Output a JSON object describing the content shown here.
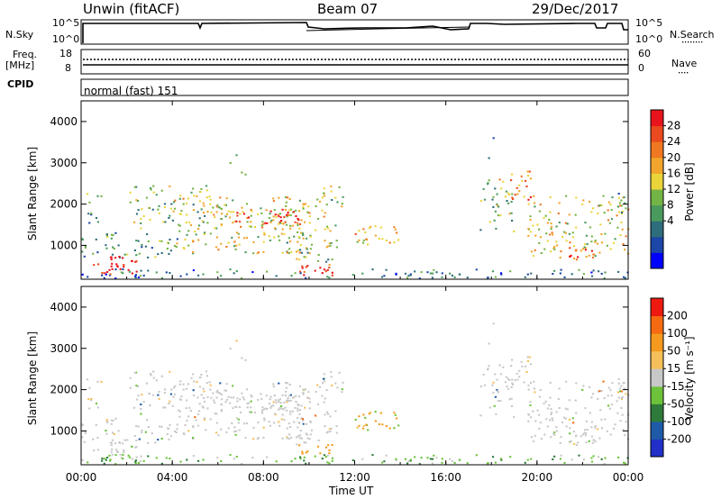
{
  "header": {
    "station": "Unwin (fitACF)",
    "beam": "Beam 07",
    "date": "29/Dec/2017"
  },
  "status_panels": {
    "nsky_label": "N.Sky",
    "nsky_ticks": [
      "10^5",
      "10^0"
    ],
    "nsearch_label": "N.Search",
    "nsearch_ticks": [
      "10^5",
      "10^0"
    ],
    "freq_label": "Freq.",
    "freq_unit": "[MHz]",
    "freq_ticks": [
      "18",
      "8"
    ],
    "nave_label": "Nave",
    "nave_ticks": [
      "60",
      "0"
    ],
    "cpid_label": "CPID",
    "cpid_value": "normal (fast) 151"
  },
  "chart_data": [
    {
      "type": "heatmap",
      "name": "power",
      "ylabel": "Slant Range [km]",
      "yticks": [
        "4000",
        "3000",
        "2000",
        "1000"
      ],
      "ylim": [
        180,
        4500
      ],
      "xlim": [
        0,
        24
      ],
      "colorbar_label": "Power [dB]",
      "colorbar_ticks": [
        "28",
        "24",
        "20",
        "16",
        "12",
        "8",
        "4"
      ],
      "colorbar_colors": [
        "#0000ff",
        "#1c46a8",
        "#2e6d7c",
        "#4a9a5e",
        "#74b446",
        "#e9d43a",
        "#f2a52c",
        "#f07822",
        "#e94a1e",
        "#e8141b"
      ]
    },
    {
      "type": "heatmap",
      "name": "velocity",
      "ylabel": "Slant Range [km]",
      "yticks": [
        "4000",
        "3000",
        "2000",
        "1000"
      ],
      "ylim": [
        180,
        4500
      ],
      "xlim": [
        0,
        24
      ],
      "colorbar_label": "Velocity [m s⁻¹]",
      "colorbar_ticks": [
        "200",
        "100",
        "50",
        "15",
        "-15",
        "-50",
        "-100",
        "-200"
      ],
      "colorbar_colors": [
        "#2030c8",
        "#1e5aa8",
        "#2e7a3a",
        "#6cc23a",
        "#c8c8c8",
        "#f5c05a",
        "#f59a1e",
        "#f56a10",
        "#ee1a10"
      ]
    }
  ],
  "time_axis": {
    "ticks": [
      "00:00",
      "04:00",
      "08:00",
      "12:00",
      "16:00",
      "20:00",
      "00:00"
    ],
    "label": "Time UT"
  }
}
